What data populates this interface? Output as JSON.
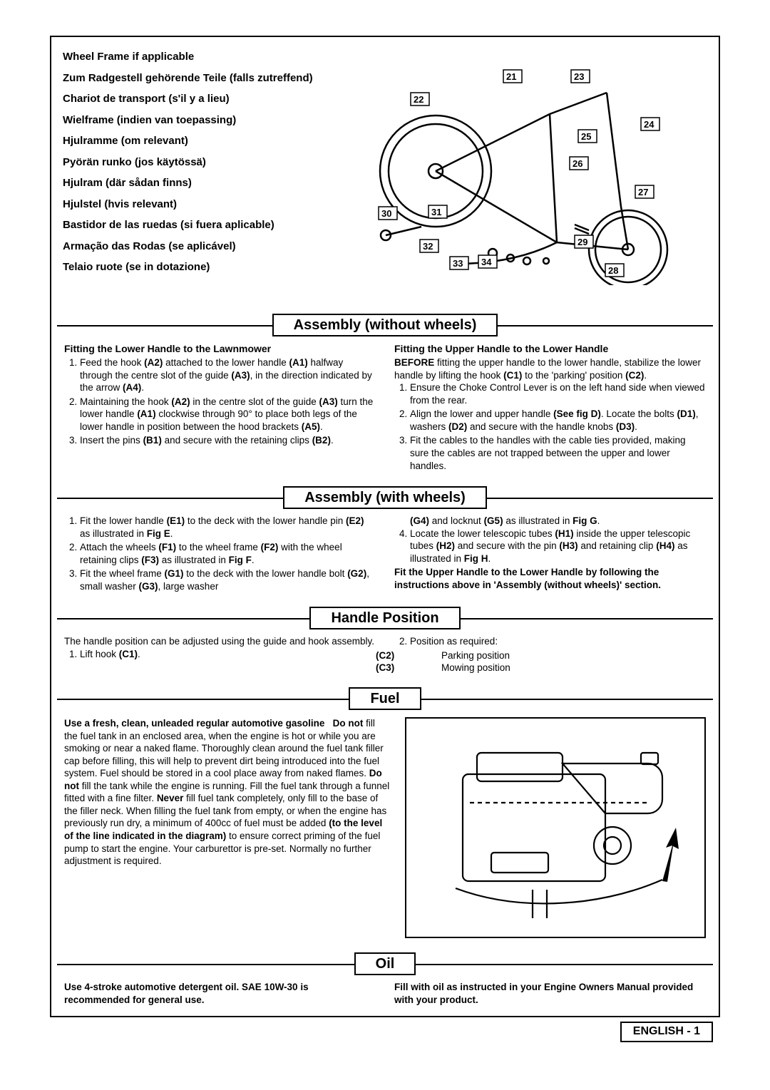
{
  "wheel_frame_titles": [
    "Wheel Frame if applicable",
    "Zum Radgestell gehörende Teile (falls zutreffend)",
    "Chariot de transport (s'il y a lieu)",
    "Wielframe (indien van toepassing)",
    "Hjulramme (om relevant)",
    "Pyörän runko (jos käytössä)",
    "Hjulram (där sådan finns)",
    "Hjulstel (hvis relevant)",
    "Bastidor de las ruedas (si fuera aplicable)",
    "Armação das Rodas (se aplicável)",
    "Telaio ruote (se in dotazione)"
  ],
  "diagram_callouts": [
    "21",
    "22",
    "23",
    "24",
    "25",
    "26",
    "27",
    "28",
    "29",
    "30",
    "31",
    "32",
    "33",
    "34"
  ],
  "sections": {
    "asm_without": {
      "title": "Assembly (without wheels)",
      "left_head": "Fitting the Lower Handle to the Lawnmower",
      "left_items": [
        "Feed the hook <b>(A2)</b> attached to the lower handle <b>(A1)</b> halfway through the centre slot of the guide <b>(A3)</b>, in the direction indicated by the arrow <b>(A4)</b>.",
        "Maintaining the hook <b>(A2)</b> in the centre slot of the guide <b>(A3)</b> turn the lower handle <b>(A1)</b> clockwise through 90° to place both legs of the lower handle in position between the hood brackets <b>(A5)</b>.",
        "Insert the pins <b>(B1)</b> and secure with the retaining clips <b>(B2)</b>."
      ],
      "right_head": "Fitting the Upper Handle to the Lower Handle",
      "right_pre": "<b>BEFORE</b> fitting the upper handle to the lower handle, stabilize the lower handle by lifting the hook <b>(C1)</b> to the 'parking' position <b>(C2)</b>.",
      "right_items": [
        "Ensure the Choke Control Lever is on the left hand side when viewed from the rear.",
        "Align the lower and upper handle <b>(See fig D)</b>. Locate the bolts <b>(D1)</b>, washers <b>(D2)</b> and secure with the handle knobs <b>(D3)</b>.",
        "Fit the cables to the handles with the cable ties provided, making sure the cables are not trapped between the upper and lower handles."
      ]
    },
    "asm_with": {
      "title": "Assembly (with wheels)",
      "left_items": [
        "Fit the lower handle <b>(E1)</b> to the deck with the lower handle pin <b>(E2)</b> as illustrated in <b>Fig E</b>.",
        "Attach the wheels <b>(F1)</b> to the wheel frame <b>(F2)</b> with the wheel retaining clips <b>(F3)</b> as illustrated in <b>Fig F</b>.",
        "Fit the wheel frame <b>(G1)</b> to the deck with the lower handle bolt <b>(G2)</b>, small washer <b>(G3)</b>, large washer"
      ],
      "right_cont": "<b>(G4)</b> and locknut <b>(G5)</b> as illustrated in <b>Fig G</b>.",
      "right_items": [
        "Locate the lower telescopic tubes <b>(H1)</b> inside the upper telescopic tubes <b>(H2)</b> and secure with the pin <b>(H3)</b> and retaining clip <b>(H4)</b> as illustrated in <b>Fig H</b>."
      ],
      "right_tail": "Fit the Upper Handle to the Lower Handle by following the instructions above in 'Assembly (without wheels)' section."
    },
    "handle": {
      "title": "Handle Position",
      "left_text": "The handle position can be adjusted using the guide and hook assembly.",
      "left_items": [
        "Lift hook <b>(C1)</b>."
      ],
      "right_items": [
        "Position as required:"
      ],
      "positions": [
        {
          "code": "(C2)",
          "label": "Parking position"
        },
        {
          "code": "(C3)",
          "label": "Mowing position"
        }
      ]
    },
    "fuel": {
      "title": "Fuel",
      "text": "<b>Use a fresh, clean, unleaded regular automotive gasoline &nbsp; Do not</b> fill the fuel tank in an enclosed area, when the engine is hot or while you are smoking or near a naked flame. Thoroughly clean around the fuel tank filler cap before filling, this will help to prevent dirt being introduced into the fuel system. Fuel should be stored in a cool place away from naked flames. <b>Do not</b> fill the tank while the engine is running. Fill the fuel tank through a funnel fitted with a fine filter. <b>Never</b> fill fuel tank completely, only fill to the base of the filler neck. When filling the fuel tank from empty, or when the engine has previously run dry, a minimum of 400cc of fuel must be added <b>(to the level of the line indicated in the diagram)</b> to ensure correct priming of the fuel pump to start the engine. Your carburettor is pre-set. Normally no further adjustment is required."
    },
    "oil": {
      "title": "Oil",
      "left": "Use 4-stroke automotive detergent oil.  SAE 10W-30 is recommended for general use.",
      "right": "Fill with oil as instructed in your Engine Owners Manual provided with your product."
    }
  },
  "footer": "ENGLISH - 1"
}
